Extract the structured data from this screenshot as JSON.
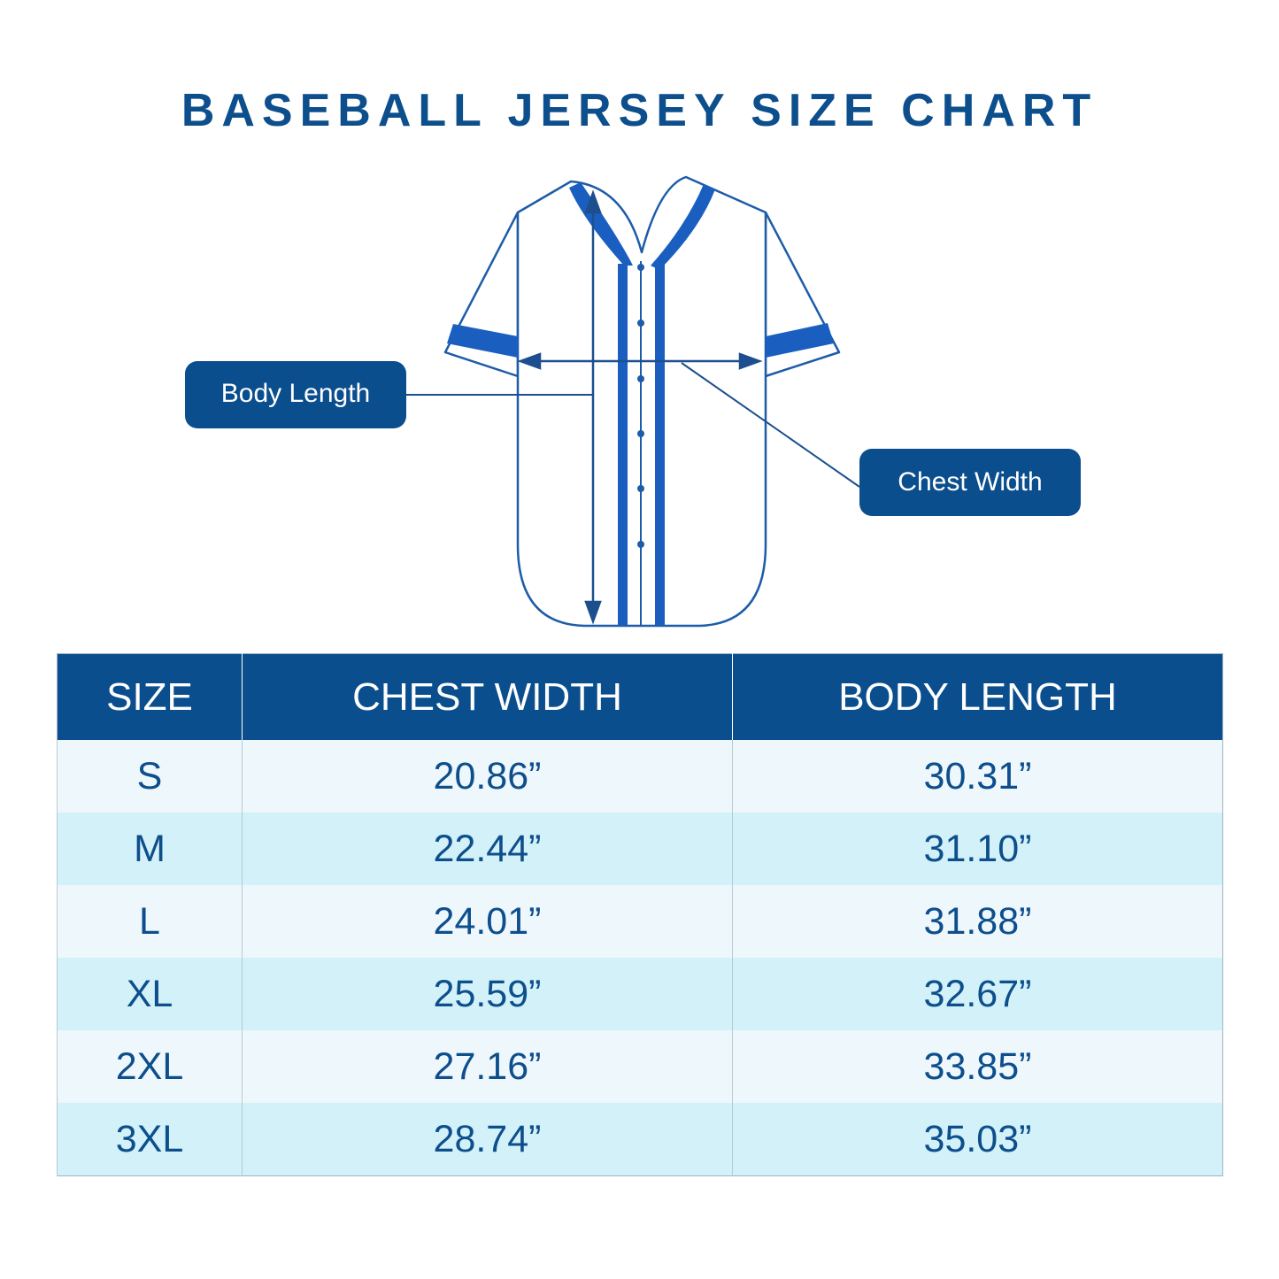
{
  "title": "BASEBALL JERSEY SIZE CHART",
  "labels": {
    "body_length": "Body Length",
    "chest_width": "Chest Width"
  },
  "table": {
    "header": [
      "SIZE",
      "CHEST WIDTH",
      "BODY LENGTH"
    ],
    "rows": [
      [
        "S",
        "20.86”",
        "30.31”"
      ],
      [
        "M",
        "22.44”",
        "31.10”"
      ],
      [
        "L",
        "24.01”",
        "31.88”"
      ],
      [
        "XL",
        "25.59”",
        "32.67”"
      ],
      [
        "2XL",
        "27.16”",
        "33.85”"
      ],
      [
        "3XL",
        "28.74”",
        "35.03”"
      ]
    ]
  }
}
